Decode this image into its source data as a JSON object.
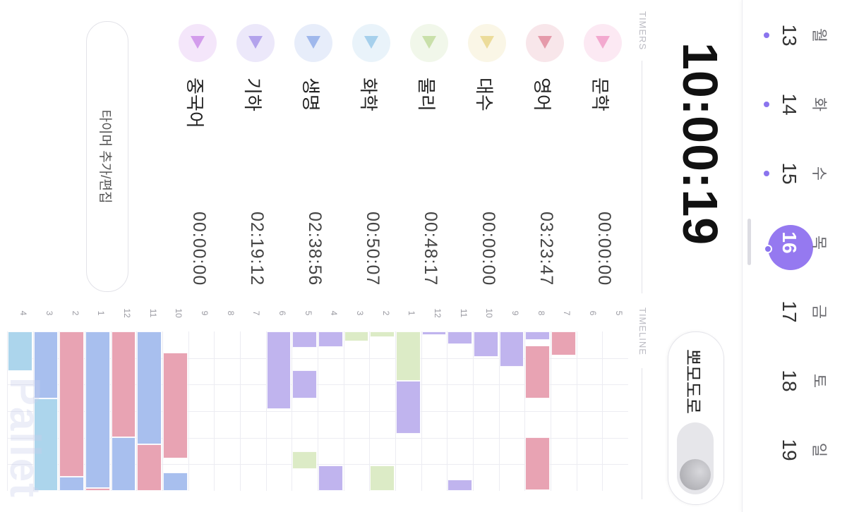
{
  "week": {
    "days": [
      {
        "dow": "월",
        "num": "13",
        "dot": true
      },
      {
        "dow": "화",
        "num": "14",
        "dot": true
      },
      {
        "dow": "수",
        "num": "15",
        "dot": true
      },
      {
        "dow": "목",
        "num": "16",
        "dot": true,
        "selected": true
      },
      {
        "dow": "금",
        "num": "17",
        "dot": false
      },
      {
        "dow": "토",
        "num": "18",
        "dot": false
      },
      {
        "dow": "일",
        "num": "19",
        "dot": false
      }
    ]
  },
  "header": {
    "total_time": "10:00:19",
    "pomodoro_label": "뽀모도로"
  },
  "sections": {
    "timers_title": "TIMERS",
    "timeline_title": "TIMELINE"
  },
  "timers": [
    {
      "name": "문학",
      "time": "00:00:00",
      "color": "#f3a9cf"
    },
    {
      "name": "영어",
      "time": "03:23:47",
      "color": "#e59aaa"
    },
    {
      "name": "대수",
      "time": "00:00:00",
      "color": "#ecdc9a"
    },
    {
      "name": "물리",
      "time": "00:48:17",
      "color": "#c9e0aa"
    },
    {
      "name": "화학",
      "time": "00:50:07",
      "color": "#a6d0ec"
    },
    {
      "name": "생명",
      "time": "02:38:56",
      "color": "#9fb8ec"
    },
    {
      "name": "기하",
      "time": "02:19:12",
      "color": "#b3a3ec"
    },
    {
      "name": "중국어",
      "time": "00:00:00",
      "color": "#d39cec"
    }
  ],
  "add_button_label": "타이머 추가/편집",
  "timeline": {
    "hours": [
      "5",
      "6",
      "7",
      "8",
      "9",
      "10",
      "11",
      "12",
      "1",
      "2",
      "3",
      "4",
      "5",
      "6",
      "7",
      "8",
      "9",
      "10",
      "11",
      "12",
      "1",
      "2",
      "3",
      "4"
    ],
    "subject_colors": {
      "english": "#e8a3b3",
      "physics": "#dcebc6",
      "algebra": "#c0b4ee",
      "biology": "#a8bfee",
      "chemistry": "#acd5ec"
    }
  },
  "watermark": "Pallet"
}
